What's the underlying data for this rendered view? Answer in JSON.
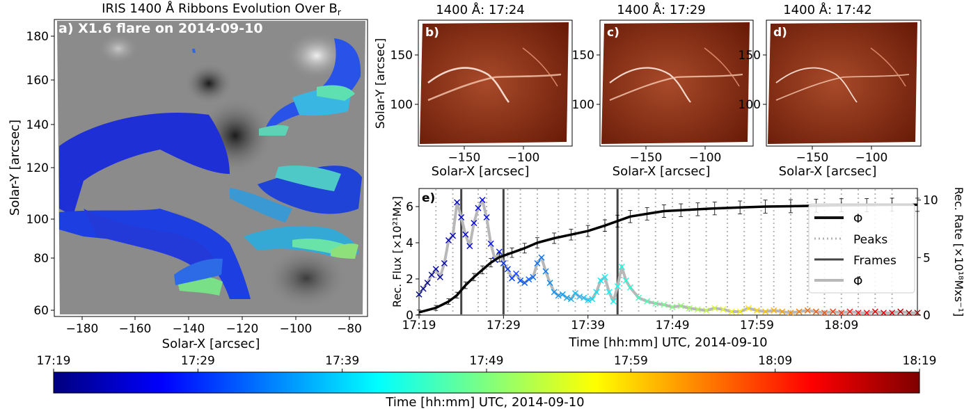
{
  "panel_a": {
    "title": "IRIS 1400 Å Ribbons Evolution Over B",
    "title_sub": "r",
    "label": "a) X1.6 flare on 2014-09-10",
    "xlabel": "Solar-X [arcsec]",
    "ylabel": "Solar-Y [arcsec]",
    "xticks": [
      "−180",
      "−160",
      "−140",
      "−120",
      "−100",
      "−80"
    ],
    "yticks": [
      "60",
      "80",
      "100",
      "120",
      "140",
      "160",
      "180"
    ]
  },
  "panels_bcd": [
    {
      "title": "1400 Å: 17:24",
      "label": "b)",
      "xlabel": "Solar-X [arcsec]",
      "ylabel": "Solar-Y [arcsec]",
      "xticks": [
        "−150",
        "−100"
      ],
      "yticks": [
        "100",
        "150"
      ]
    },
    {
      "title": "1400 Å: 17:29",
      "label": "c)",
      "xlabel": "Solar-X [arcsec]",
      "ylabel": "",
      "xticks": [
        "−150",
        "−100"
      ],
      "yticks": [
        "100",
        "150"
      ]
    },
    {
      "title": "1400 Å: 17:42",
      "label": "d)",
      "xlabel": "Solar-X [arcsec]",
      "ylabel": "",
      "xticks": [
        "−150",
        "−100"
      ],
      "yticks": [
        "100",
        "150"
      ]
    }
  ],
  "panel_e": {
    "label": "e)",
    "xlabel": "Time [hh:mm] UTC, 2014-09-10",
    "ylabel_left": "Rec. Flux [×10²¹Mx]",
    "ylabel_right": "Rec. Rate [×10¹⁸Mxs⁻¹]",
    "legend": [
      "Φ",
      "Peaks",
      "Frames",
      "Φ̇"
    ]
  },
  "colorbar": {
    "label": "Time [hh:mm] UTC, 2014-09-10",
    "ticks": [
      "17:19",
      "17:29",
      "17:39",
      "17:49",
      "17:59",
      "18:09",
      "18:19"
    ]
  },
  "chart_data": {
    "type": "line",
    "x_label": "Time [hh:mm] UTC, 2014-09-10",
    "x_range": [
      0,
      59
    ],
    "x_ticks": [
      "17:19",
      "17:29",
      "17:39",
      "17:49",
      "17:59",
      "18:09"
    ],
    "y_left_range": [
      0,
      7
    ],
    "y_left_ticks": [
      0,
      2,
      4,
      6
    ],
    "y_right_range": [
      0,
      11
    ],
    "y_right_ticks": [
      0,
      5,
      10
    ],
    "frames": [
      5,
      10,
      23.5
    ],
    "peaks": [
      2,
      4,
      5,
      7,
      8,
      10.5,
      12,
      14,
      16.5,
      18.5,
      20,
      22,
      24,
      26,
      28,
      30,
      32,
      34,
      36.5,
      38.5,
      40.5,
      42,
      44,
      46,
      48,
      50,
      52,
      54,
      56
    ],
    "series": [
      {
        "name": "Φ",
        "axis": "left",
        "color": "#000000",
        "x": [
          0,
          2,
          3.5,
          4.5,
          5.5,
          6.5,
          7.5,
          8.5,
          9.5,
          11,
          12.5,
          14,
          16,
          18,
          20,
          22,
          23.5,
          25,
          27,
          29,
          31,
          33,
          35,
          38,
          41,
          44,
          47,
          50,
          53,
          56,
          59
        ],
        "y": [
          0.15,
          0.4,
          0.75,
          1.1,
          1.65,
          2.1,
          2.5,
          2.9,
          3.2,
          3.45,
          3.7,
          4.0,
          4.25,
          4.45,
          4.65,
          4.95,
          5.2,
          5.45,
          5.6,
          5.75,
          5.8,
          5.85,
          5.9,
          5.95,
          6.0,
          6.02,
          6.05,
          6.07,
          6.08,
          6.1,
          6.1
        ]
      },
      {
        "name": "Φ̇",
        "axis": "right",
        "color": "#b8b8b8",
        "x": [
          0,
          0.5,
          1,
          1.5,
          2,
          2.5,
          3,
          3.5,
          4,
          4.5,
          5,
          5.5,
          6,
          6.5,
          7,
          7.5,
          8,
          8.5,
          9,
          9.5,
          10,
          10.5,
          11,
          11.5,
          12,
          12.5,
          13,
          13.5,
          14,
          14.5,
          15,
          15.5,
          16,
          16.5,
          17,
          17.5,
          18,
          18.5,
          19,
          19.5,
          20,
          20.5,
          21,
          21.5,
          22,
          22.5,
          23,
          23.5,
          24,
          24.5,
          25,
          26,
          27,
          28,
          29,
          30,
          31,
          32,
          33,
          34,
          35,
          36,
          37,
          38,
          39,
          40,
          41,
          42,
          43,
          44,
          45,
          46,
          47,
          48,
          49,
          50,
          51,
          52,
          53,
          54,
          55,
          56,
          57,
          58,
          59
        ],
        "y": [
          1.8,
          2.3,
          2.8,
          3.5,
          4.0,
          3.3,
          4.5,
          6.5,
          6.9,
          9.8,
          8.5,
          7.0,
          6.0,
          8.0,
          9.3,
          10.0,
          8.5,
          6.2,
          4.8,
          5.5,
          4.5,
          4.0,
          3.2,
          3.6,
          3.0,
          2.8,
          3.1,
          3.3,
          4.5,
          5.0,
          3.8,
          2.8,
          2.0,
          1.7,
          1.8,
          1.5,
          1.4,
          1.9,
          1.6,
          1.5,
          1.3,
          1.4,
          2.0,
          3.0,
          3.3,
          2.0,
          1.2,
          2.5,
          4.2,
          3.0,
          2.4,
          1.5,
          1.2,
          1.0,
          0.9,
          0.7,
          0.8,
          0.6,
          0.5,
          0.4,
          0.6,
          0.5,
          0.3,
          0.3,
          0.6,
          0.4,
          0.3,
          0.4,
          0.3,
          0.2,
          0.3,
          0.4,
          0.3,
          0.2,
          0.3,
          0.2,
          0.3,
          0.2,
          0.2,
          0.3,
          0.2,
          0.2,
          0.3,
          0.2,
          0.2
        ]
      }
    ]
  }
}
